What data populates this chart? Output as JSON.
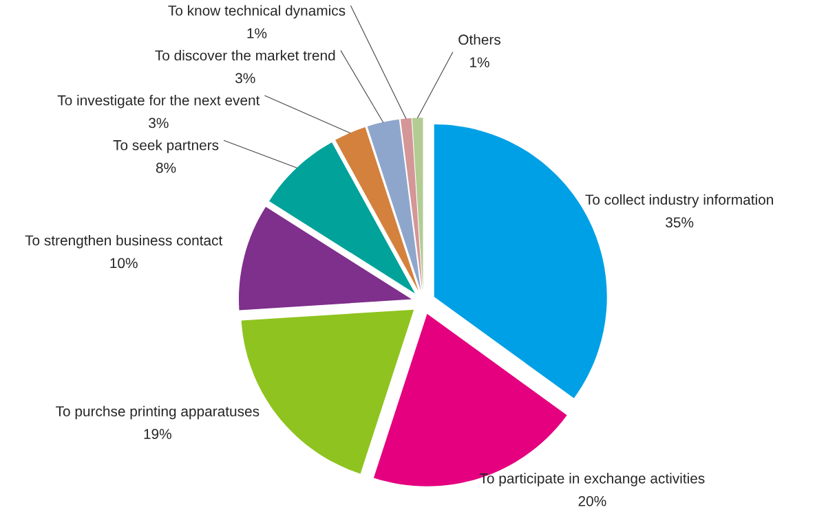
{
  "chart_data": {
    "type": "pie",
    "categories": [
      "To collect industry information",
      "To participate in exchange activities",
      "To purchse printing apparatuses",
      "To strengthen business contact",
      "To seek partners",
      "To investigate for the next event",
      "To discover the market trend",
      "To know technical dynamics",
      "Others"
    ],
    "values": [
      35,
      20,
      19,
      10,
      8,
      3,
      3,
      1,
      1
    ],
    "value_labels": [
      "35%",
      "20%",
      "19%",
      "10%",
      "8%",
      "3%",
      "3%",
      "1%",
      "1%"
    ],
    "colors": [
      "#00a0e6",
      "#e4007f",
      "#8fc31f",
      "#7f2f8c",
      "#00a29a",
      "#d4813d",
      "#8fa6cc",
      "#d49696",
      "#b2cc94"
    ]
  }
}
